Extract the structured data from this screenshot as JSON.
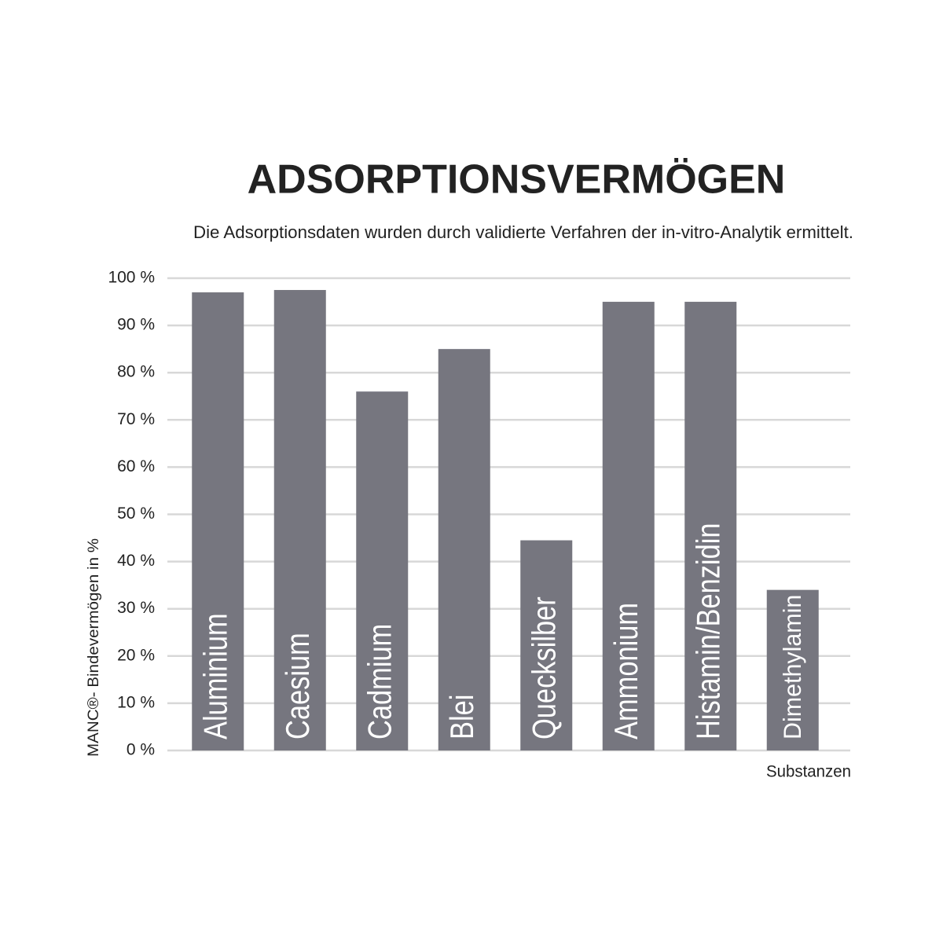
{
  "chart_data": {
    "type": "bar",
    "title": "ADSORPTIONSVERMÖGEN",
    "subtitle": "Die Adsorptionsdaten wurden durch validierte Verfahren der in-vitro-Analytik ermittelt.",
    "y_label": "MANC®- Bindevermögen in %",
    "x_label": "Substanzen",
    "categories": [
      "Aluminium",
      "Caesium",
      "Cadmium",
      "Blei",
      "Quecksilber",
      "Ammonium",
      "Histamin/Benzidin",
      "Dimethylamin"
    ],
    "values": [
      97,
      97.5,
      76,
      85,
      44.5,
      95,
      95,
      34
    ],
    "color": "#76767f",
    "ylim": [
      0,
      100
    ],
    "yticks": [
      {
        "value": 0,
        "label": "0 %"
      },
      {
        "value": 10,
        "label": "10 %"
      },
      {
        "value": 20,
        "label": "20 %"
      },
      {
        "value": 30,
        "label": "30 %"
      },
      {
        "value": 40,
        "label": "40 %"
      },
      {
        "value": 50,
        "label": "50 %"
      },
      {
        "value": 60,
        "label": "60 %"
      },
      {
        "value": 70,
        "label": "70 %"
      },
      {
        "value": 80,
        "label": "80 %"
      },
      {
        "value": 90,
        "label": "90 %"
      },
      {
        "value": 100,
        "label": "100 %"
      }
    ],
    "grid": true
  }
}
